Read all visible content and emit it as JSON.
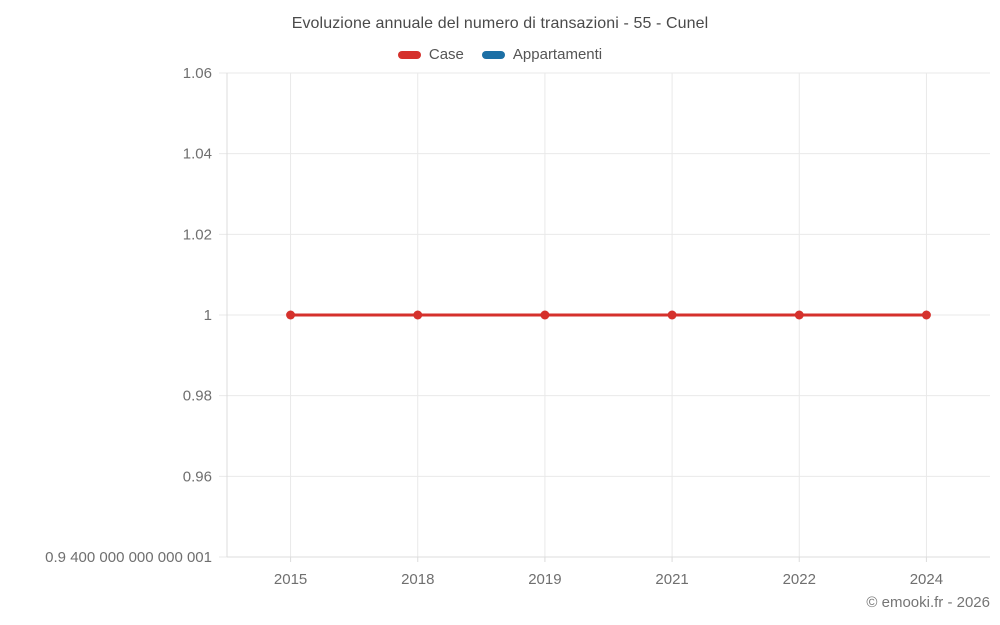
{
  "page": {
    "title": "Evoluzione annuale del numero di transazioni - 55 - Cunel",
    "copyright": "© emooki.fr - 2026"
  },
  "legend": {
    "items": [
      {
        "label": "Case",
        "color": "#d5312c"
      },
      {
        "label": "Appartamenti",
        "color": "#1c6fa5"
      }
    ]
  },
  "chart_data": {
    "type": "line",
    "title": "Evoluzione annuale del numero di transazioni - 55 - Cunel",
    "categories": [
      "2015",
      "2018",
      "2019",
      "2021",
      "2022",
      "2024"
    ],
    "series": [
      {
        "name": "Case",
        "color": "#d5312c",
        "values": [
          1,
          1,
          1,
          1,
          1,
          1
        ]
      },
      {
        "name": "Appartamenti",
        "color": "#1c6fa5",
        "values": []
      }
    ],
    "xlabel": "",
    "ylabel": "",
    "ylim": [
      0.9400000000000001,
      1.06
    ],
    "y_ticks": [
      {
        "value": 1.06,
        "label": "1.06"
      },
      {
        "value": 1.04,
        "label": "1.04"
      },
      {
        "value": 1.02,
        "label": "1.02"
      },
      {
        "value": 1.0,
        "label": "1"
      },
      {
        "value": 0.98,
        "label": "0.98"
      },
      {
        "value": 0.96,
        "label": "0.96"
      },
      {
        "value": 0.9400000000000001,
        "label": "0.9 400 000 000 000 001"
      }
    ],
    "grid": true,
    "legend_position": "top",
    "colors": {
      "gridline": "#e9e9e9",
      "axis": "#dcdcdc",
      "tick_label": "#6f6f6f",
      "title_text": "#4a4a4a"
    }
  }
}
